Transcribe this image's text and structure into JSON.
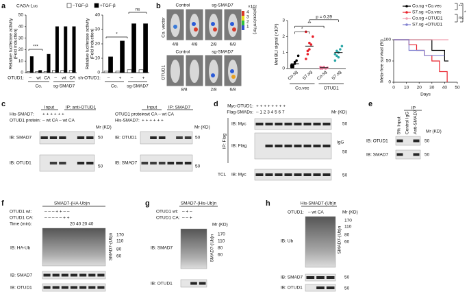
{
  "panel_labels": [
    "a",
    "b",
    "c",
    "d",
    "e",
    "f",
    "g",
    "h"
  ],
  "chart_data": [
    {
      "type": "bar",
      "title": "CAGA-Luc",
      "y_label": [
        "Relative luciferase activity",
        "(Fold induction)"
      ],
      "row_label": "OTUD1:",
      "categories": [
        "–",
        "wt",
        "CA",
        "–",
        "wt",
        "CA"
      ],
      "groups": [
        "Co.",
        "sg-SMAD7"
      ],
      "series": [
        {
          "name": "−TGF-β",
          "color": "#ffffff",
          "values": [
            1,
            1,
            1,
            2,
            2,
            2
          ]
        },
        {
          "name": "+TGF-β",
          "color": "#000000",
          "values": [
            14,
            2,
            16,
            40,
            40,
            40
          ]
        }
      ],
      "ylim": [
        0,
        50
      ],
      "yticks": [
        0,
        10,
        20,
        30,
        40,
        50
      ],
      "annotations": [
        "***"
      ]
    },
    {
      "type": "bar",
      "y_label": [
        "Relative luciferase activity",
        "(Fold induction)"
      ],
      "row_label": "sh-OTUD1:",
      "categories": [
        "–",
        "+",
        "–",
        "+"
      ],
      "groups": [
        "Co.",
        "sg-SMAD7"
      ],
      "series": [
        {
          "color": "#ffffff",
          "values": [
            1,
            1,
            2,
            2
          ]
        },
        {
          "color": "#000000",
          "values": [
            11,
            22,
            34,
            34
          ]
        }
      ],
      "ylim": [
        0,
        40
      ],
      "yticks": [
        0,
        10,
        20,
        30,
        40
      ],
      "annotations": [
        "*",
        "ns"
      ]
    },
    {
      "type": "strip",
      "y_label": "Met BLI signal (×10⁶)",
      "categories": [
        "Co.sg",
        "S7.sg",
        "Co.sg",
        "S7.sg"
      ],
      "groups": [
        "Co.vec",
        "OTUD1"
      ],
      "colors": [
        "#000000",
        "#e8202a",
        "#f07fa0",
        "#2aa6a6"
      ],
      "points": [
        [
          0.1,
          0.2,
          0.3,
          0.5,
          0.8,
          0.2,
          0.1,
          0.4
        ],
        [
          0.6,
          0.9,
          1.2,
          1.5,
          2.0,
          2.3,
          1.1,
          1.6
        ],
        [
          0.0,
          0.05,
          0.1,
          0.0,
          0.05,
          0.1,
          0.0,
          0.05
        ],
        [
          0.5,
          0.8,
          1.0,
          1.2,
          1.4,
          0.9,
          1.1,
          0.7
        ]
      ],
      "means": [
        0.3,
        1.4,
        0.05,
        1.0
      ],
      "ylim": [
        0,
        3
      ],
      "yticks": [
        0,
        1,
        2,
        3
      ],
      "annotations": [
        "*",
        "**",
        "p = 0.39"
      ]
    },
    {
      "type": "step",
      "y_label": "Meta-free survival (%)",
      "x_label": "Days",
      "xlim": [
        0,
        50
      ],
      "xticks": [
        0,
        10,
        20,
        30,
        40,
        50
      ],
      "ylim": [
        0,
        100
      ],
      "yticks": [
        0,
        50,
        100
      ],
      "series": [
        {
          "name": "Co.sg +Co.vec",
          "color": "#000000",
          "x": [
            0,
            30,
            40,
            43
          ],
          "values": [
            100,
            75,
            50,
            50
          ]
        },
        {
          "name": "S7.sg +Co.vec",
          "color": "#e8202a",
          "x": [
            0,
            12,
            18,
            24,
            30,
            36,
            42
          ],
          "values": [
            100,
            88,
            75,
            63,
            50,
            25,
            0
          ]
        },
        {
          "name": "Co.sg +OTUD1",
          "color": "#f0a0b0",
          "x": [
            0,
            43
          ],
          "values": [
            100,
            100
          ]
        },
        {
          "name": "S7.sg +OTUD1",
          "color": "#8080d0",
          "x": [
            0,
            12,
            24,
            40
          ],
          "values": [
            100,
            75,
            63,
            63
          ]
        }
      ],
      "annotations": [
        "**",
        "*",
        "ns"
      ]
    }
  ],
  "panel_b": {
    "columns": [
      "Control",
      "sg-SMAD7"
    ],
    "rows": [
      "Co. vector",
      "OTUD1"
    ],
    "ratios_top": [
      "4/8",
      "4/8",
      "2/8",
      "6/8"
    ],
    "ratios_bottom": [
      "8/8",
      "2/8",
      "6/8"
    ],
    "colorbar_unit": "×10⁷",
    "colorbar_ticks": [
      "4",
      "3",
      "2",
      "1"
    ],
    "colorbar_label": "(p/sec/cm²/sr)"
  },
  "blot_c_left": {
    "headers": [
      "Input",
      "IP: anti-OTUD1"
    ],
    "rows": [
      {
        "label": "His-SMAD7:",
        "lanes": "+   +   +   +   +   +"
      },
      {
        "label": "OTUD1 protein:",
        "lanes": "–   wt  CA   –   wt  CA"
      }
    ],
    "mr": "Mr (KD)",
    "blots": [
      "IB: SMAD7",
      "IB: OTUD1"
    ],
    "markers": [
      "50",
      "50"
    ]
  },
  "blot_c_right": {
    "headers": [
      "Input",
      "IP: SMAD7"
    ],
    "rows": [
      {
        "label": "OTUD1 protein:",
        "lanes": "–  wt  CA   –  wt  CA"
      },
      {
        "label": "His-SMAD7:",
        "lanes": "+   +   +   +   +   +"
      }
    ],
    "mr": "Mr (KD)",
    "blots": [
      "IB: OTUD1",
      "IB: SMAD7"
    ],
    "markers": [
      "50",
      "50"
    ]
  },
  "blot_d": {
    "rows": [
      {
        "label": "Myc-OTUD1:",
        "lanes": "+   +   +   +   +   +   +   +"
      },
      {
        "label": "Flag-SMADs:",
        "lanes": "–   1   2   3   4   5   6   7"
      }
    ],
    "mr": "Mr (KD)",
    "ip": "IP: Flag",
    "tcl": "TCL",
    "blots": [
      "IB: Myc",
      "IB: Flag",
      "IB: Myc"
    ],
    "markers": [
      "50",
      "50",
      "50"
    ],
    "igg": "IgG"
  },
  "blot_e": {
    "header": "IP",
    "columns": [
      "5% Input",
      "Control IgG",
      "Anti-SMAD7"
    ],
    "mr": "Mr (KD)",
    "blots": [
      "IB: OTUD1",
      "IB: SMAD7"
    ],
    "markers": [
      "50",
      "50"
    ]
  },
  "blot_f": {
    "title": "SMAD7-(HA-Ub)n",
    "rows": [
      {
        "label": "OTUD1 wt:",
        "lanes": "–   –   –   +   +   –   –"
      },
      {
        "label": "OTUD1 CA:",
        "lanes": "–   –   –   –   –   +   +"
      },
      {
        "label": "Time (min):",
        "lanes": "20 40 20 40"
      }
    ],
    "blots": [
      "IB: HA-Ub",
      "IB: SMAD7",
      "IB: OTUD1"
    ],
    "ub_label": "SMAD7-(Ub)n",
    "markers": [
      "170",
      "110",
      "80",
      "60"
    ]
  },
  "blot_g": {
    "title": "SMAD7-(His-Ub)n",
    "rows": [
      {
        "label": "OTUD1 wt:",
        "lanes": "–   +   –"
      },
      {
        "label": "OTUD1 CA:",
        "lanes": "–   –   +"
      }
    ],
    "mr": "Mr (KD)",
    "blots": [
      "IB: SMAD7",
      "IB: OTUD1"
    ],
    "ub_label": "SMAD7-(Ub)n",
    "markers": [
      "170",
      "110",
      "80",
      "60"
    ]
  },
  "blot_h": {
    "title": "His-SMAD7-(Ub)n",
    "rows": [
      {
        "label": "OTUD1:",
        "lanes": "–   wt  CA"
      }
    ],
    "mr": "Mr (KD)",
    "blots": [
      "IB: Ub",
      "IB: SMAD7",
      "IB: OTUD1"
    ],
    "ub_label": "SMAD7-(Ub)n",
    "markers": [
      "170",
      "110",
      "80",
      "60",
      "50",
      "50"
    ]
  }
}
